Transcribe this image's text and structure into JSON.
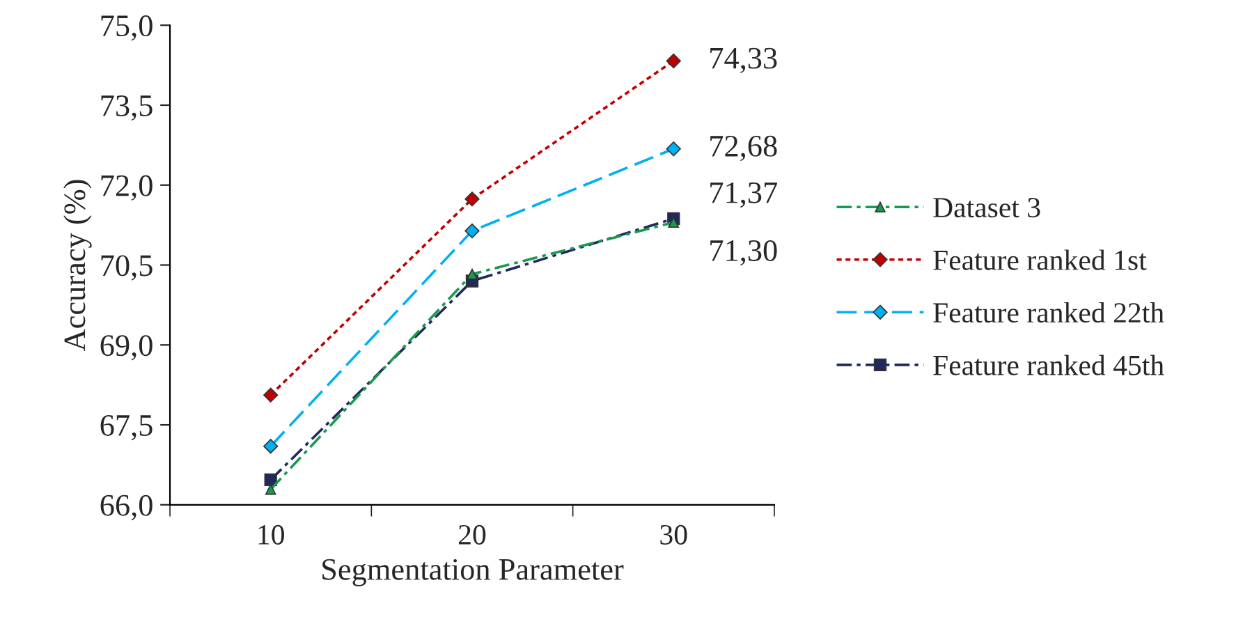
{
  "chart_data": {
    "type": "line",
    "xlabel": "Segmentation Parameter",
    "ylabel": "Accuracy (%)",
    "categories": [
      "10",
      "20",
      "30"
    ],
    "ylim": [
      66.0,
      75.0
    ],
    "yticks": [
      {
        "value": 66.0,
        "label": "66,0"
      },
      {
        "value": 67.5,
        "label": "67,5"
      },
      {
        "value": 69.0,
        "label": "69,0"
      },
      {
        "value": 70.5,
        "label": "70,5"
      },
      {
        "value": 72.0,
        "label": "72,0"
      },
      {
        "value": 73.5,
        "label": "73,5"
      },
      {
        "value": 75.0,
        "label": "75,0"
      }
    ],
    "series": [
      {
        "name": "Dataset 3",
        "color": "#1a9a50",
        "values": [
          66.29,
          70.33,
          71.3
        ],
        "marker": "triangle",
        "line_style": "dashdot",
        "value_labels": [
          null,
          null,
          "71,30"
        ]
      },
      {
        "name": "Feature ranked 1st",
        "color": "#c00000",
        "values": [
          68.06,
          71.74,
          74.33
        ],
        "marker": "diamond",
        "line_style": "dotted",
        "value_labels": [
          null,
          null,
          "74,33"
        ]
      },
      {
        "name": "Feature ranked 22th",
        "color": "#00b0f0",
        "values": [
          67.1,
          71.14,
          72.68
        ],
        "marker": "diamond",
        "line_style": "dashed",
        "value_labels": [
          null,
          null,
          "72,68"
        ]
      },
      {
        "name": "Feature ranked 45th",
        "color": "#1f2a5a",
        "values": [
          66.47,
          70.2,
          71.37
        ],
        "marker": "square",
        "line_style": "dashdot",
        "value_labels": [
          null,
          null,
          "71,37"
        ]
      }
    ],
    "grid": false,
    "legend": "right"
  }
}
